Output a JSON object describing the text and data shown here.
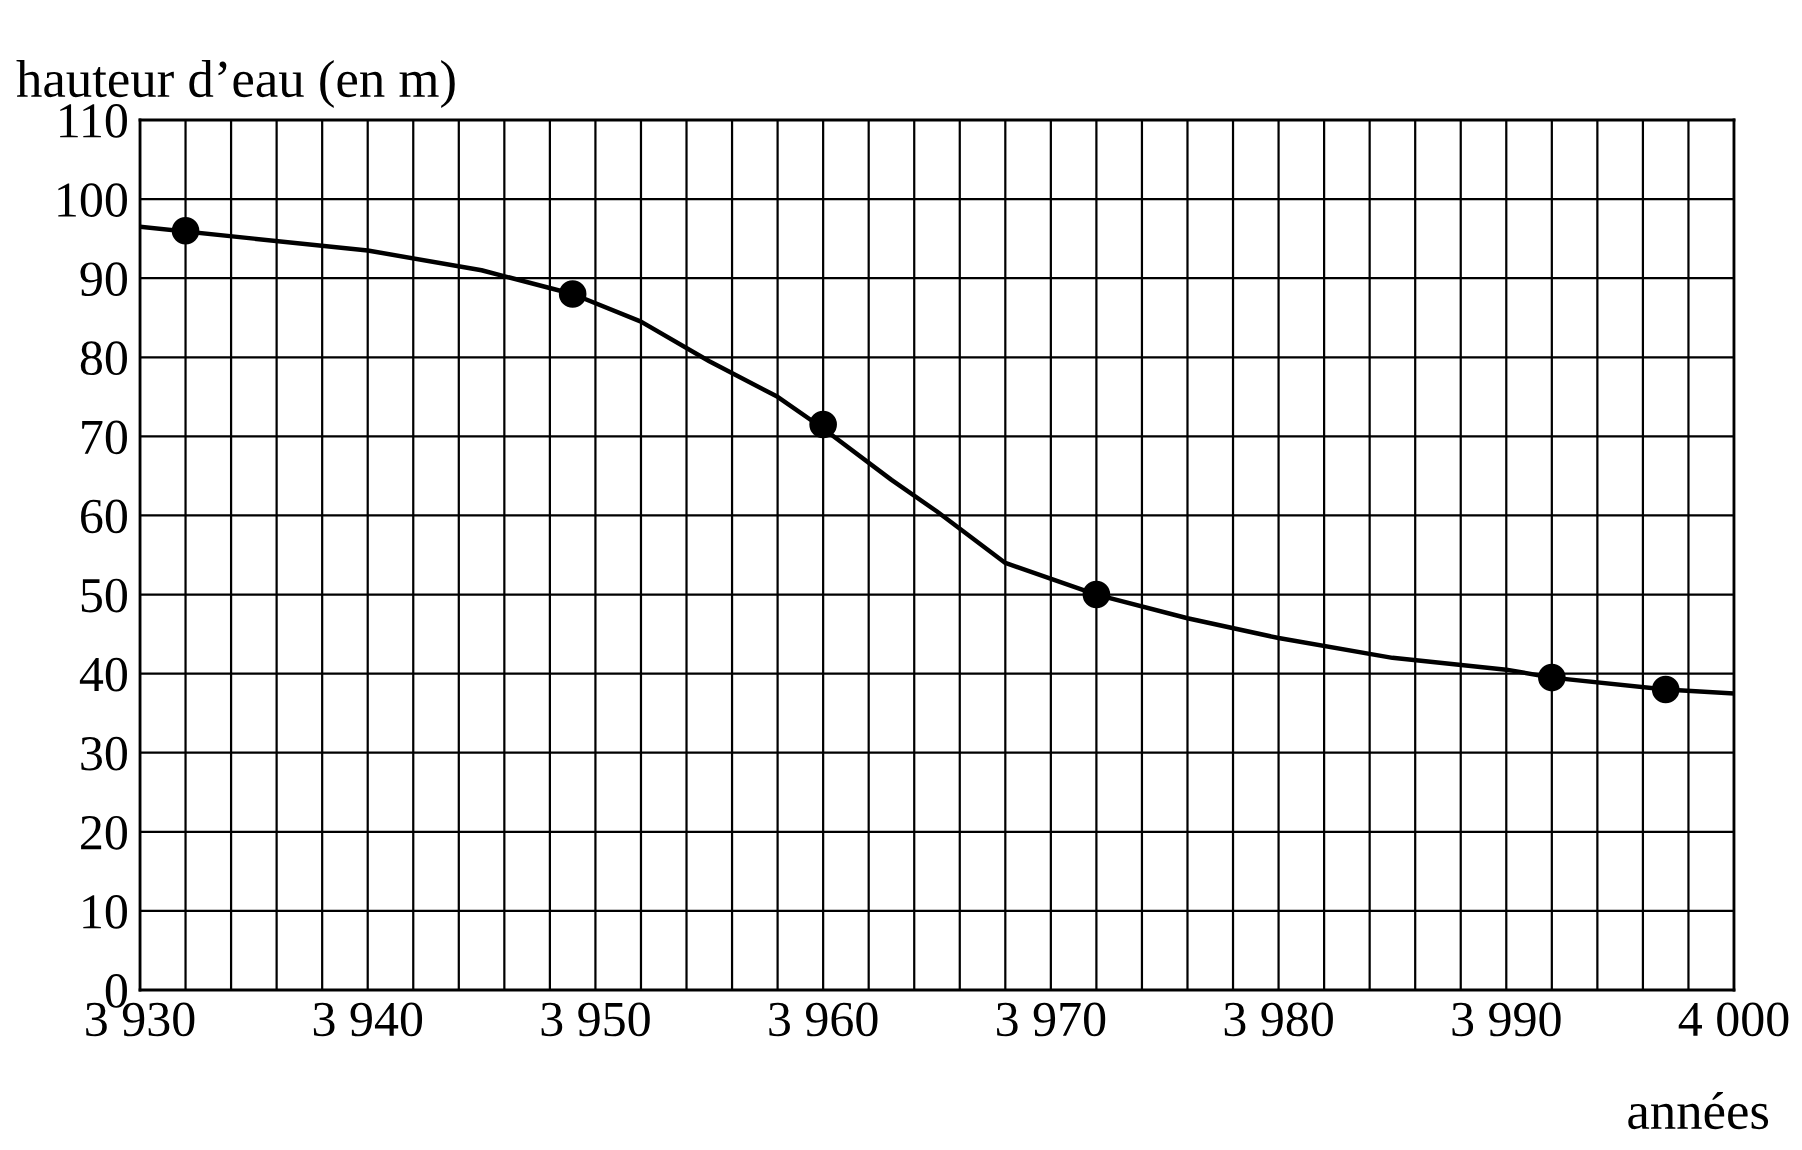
{
  "chart_data": {
    "type": "line",
    "ylabel": "hauteur d’eau (en m)",
    "xlabel": "années",
    "xlim": [
      3930,
      4000
    ],
    "ylim": [
      0,
      110
    ],
    "xticks": [
      {
        "value": 3930,
        "label": "3 930"
      },
      {
        "value": 3932,
        "label": null
      },
      {
        "value": 3934,
        "label": null
      },
      {
        "value": 3936,
        "label": null
      },
      {
        "value": 3938,
        "label": null
      },
      {
        "value": 3940,
        "label": "3 940"
      },
      {
        "value": 3942,
        "label": null
      },
      {
        "value": 3944,
        "label": null
      },
      {
        "value": 3946,
        "label": null
      },
      {
        "value": 3948,
        "label": null
      },
      {
        "value": 3950,
        "label": "3 950"
      },
      {
        "value": 3952,
        "label": null
      },
      {
        "value": 3954,
        "label": null
      },
      {
        "value": 3956,
        "label": null
      },
      {
        "value": 3958,
        "label": null
      },
      {
        "value": 3960,
        "label": "3 960"
      },
      {
        "value": 3962,
        "label": null
      },
      {
        "value": 3964,
        "label": null
      },
      {
        "value": 3966,
        "label": null
      },
      {
        "value": 3968,
        "label": null
      },
      {
        "value": 3970,
        "label": "3 970"
      },
      {
        "value": 3972,
        "label": null
      },
      {
        "value": 3974,
        "label": null
      },
      {
        "value": 3976,
        "label": null
      },
      {
        "value": 3978,
        "label": null
      },
      {
        "value": 3980,
        "label": "3 980"
      },
      {
        "value": 3982,
        "label": null
      },
      {
        "value": 3984,
        "label": null
      },
      {
        "value": 3986,
        "label": null
      },
      {
        "value": 3988,
        "label": null
      },
      {
        "value": 3990,
        "label": "3 990"
      },
      {
        "value": 3992,
        "label": null
      },
      {
        "value": 3994,
        "label": null
      },
      {
        "value": 3996,
        "label": null
      },
      {
        "value": 3998,
        "label": null
      },
      {
        "value": 4000,
        "label": "4 000"
      }
    ],
    "yticks": [
      0,
      10,
      20,
      30,
      40,
      50,
      60,
      70,
      80,
      90,
      100,
      110
    ],
    "grid": true,
    "series": [
      {
        "color": "#000000",
        "marker": "none",
        "line_style": "solid",
        "x": [
          3930,
          3935,
          3940,
          3945,
          3949,
          3952,
          3955,
          3958,
          3960,
          3963,
          3965,
          3968,
          3972,
          3976,
          3980,
          3985,
          3990,
          3992,
          3997,
          4000
        ],
        "values": [
          96.5,
          95,
          93.5,
          91,
          88,
          84.5,
          79.5,
          75,
          71,
          64.5,
          60.5,
          54,
          50,
          47,
          44.5,
          42,
          40.5,
          39.5,
          38,
          37.5
        ]
      },
      {
        "type": "scatter",
        "color": "#000000",
        "marker": "circle",
        "x": [
          3932,
          3949,
          3960,
          3972,
          3992,
          3997
        ],
        "values": [
          96,
          88,
          71.5,
          50,
          39.5,
          38
        ]
      }
    ]
  }
}
